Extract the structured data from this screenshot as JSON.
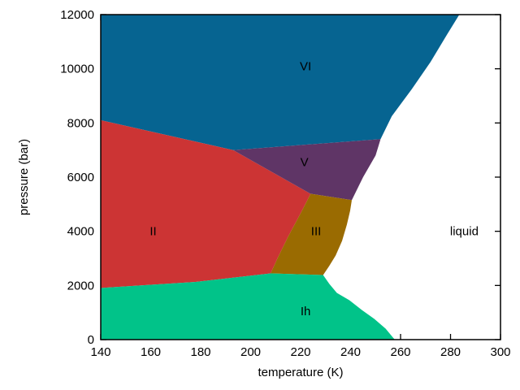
{
  "chart_data": {
    "type": "area",
    "title": "",
    "xlabel": "temperature (K)",
    "ylabel": "pressure (bar)",
    "xlim": [
      140,
      300
    ],
    "ylim": [
      0,
      12000
    ],
    "x_ticks": [
      140,
      160,
      180,
      200,
      220,
      240,
      260,
      280,
      300
    ],
    "y_ticks": [
      0,
      2000,
      4000,
      6000,
      8000,
      10000,
      12000
    ],
    "grid": false,
    "legend": "none",
    "background_color": "#ffffff",
    "border_color": "#000000",
    "text_color": "#000000",
    "regions": [
      {
        "name": "VI",
        "label": "VI",
        "color": "#066491",
        "label_pos": [
          222,
          10100
        ],
        "points": [
          [
            140,
            12000
          ],
          [
            283.5,
            12000
          ],
          [
            278.5,
            11250
          ],
          [
            272,
            10250
          ],
          [
            264.5,
            9250
          ],
          [
            256.5,
            8250
          ],
          [
            252,
            7400
          ],
          [
            193,
            7000
          ],
          [
            140,
            8100
          ]
        ]
      },
      {
        "name": "II",
        "label": "II",
        "color": "#cc3434",
        "label_pos": [
          161,
          4000
        ],
        "points": [
          [
            140,
            8100
          ],
          [
            193,
            7000
          ],
          [
            224,
            5385
          ],
          [
            220,
            4665
          ],
          [
            215,
            3800
          ],
          [
            211,
            3050
          ],
          [
            208,
            2445
          ],
          [
            178,
            2130
          ],
          [
            140,
            1905
          ]
        ]
      },
      {
        "name": "V",
        "label": "V",
        "color": "#5f3566",
        "label_pos": [
          221.5,
          6550
        ],
        "points": [
          [
            193,
            7000
          ],
          [
            252,
            7400
          ],
          [
            250,
            6800
          ],
          [
            245,
            6000
          ],
          [
            240.5,
            5150
          ],
          [
            224,
            5385
          ]
        ]
      },
      {
        "name": "III",
        "label": "III",
        "color": "#9a6b01",
        "label_pos": [
          226.2,
          4000
        ],
        "points": [
          [
            224,
            5385
          ],
          [
            240.5,
            5150
          ],
          [
            239.8,
            4755
          ],
          [
            238.5,
            4245
          ],
          [
            236.6,
            3645
          ],
          [
            234,
            3105
          ],
          [
            231.4,
            2715
          ],
          [
            229,
            2385
          ],
          [
            208,
            2445
          ],
          [
            211,
            3050
          ],
          [
            215,
            3800
          ],
          [
            220,
            4665
          ]
        ]
      },
      {
        "name": "Ih",
        "label": "Ih",
        "color": "#01c389",
        "label_pos": [
          222,
          1050
        ],
        "points": [
          [
            140,
            1905
          ],
          [
            178,
            2130
          ],
          [
            208,
            2445
          ],
          [
            229,
            2385
          ],
          [
            231.5,
            2055
          ],
          [
            234.5,
            1725
          ],
          [
            239.5,
            1455
          ],
          [
            244.5,
            1095
          ],
          [
            249.5,
            765
          ],
          [
            254,
            405
          ],
          [
            256.7,
            105
          ],
          [
            257.7,
            0
          ],
          [
            140,
            0
          ]
        ]
      },
      {
        "name": "liquid",
        "label": "liquid",
        "color": "#ffffff",
        "label_pos": [
          285.5,
          4000
        ],
        "points": []
      }
    ]
  }
}
